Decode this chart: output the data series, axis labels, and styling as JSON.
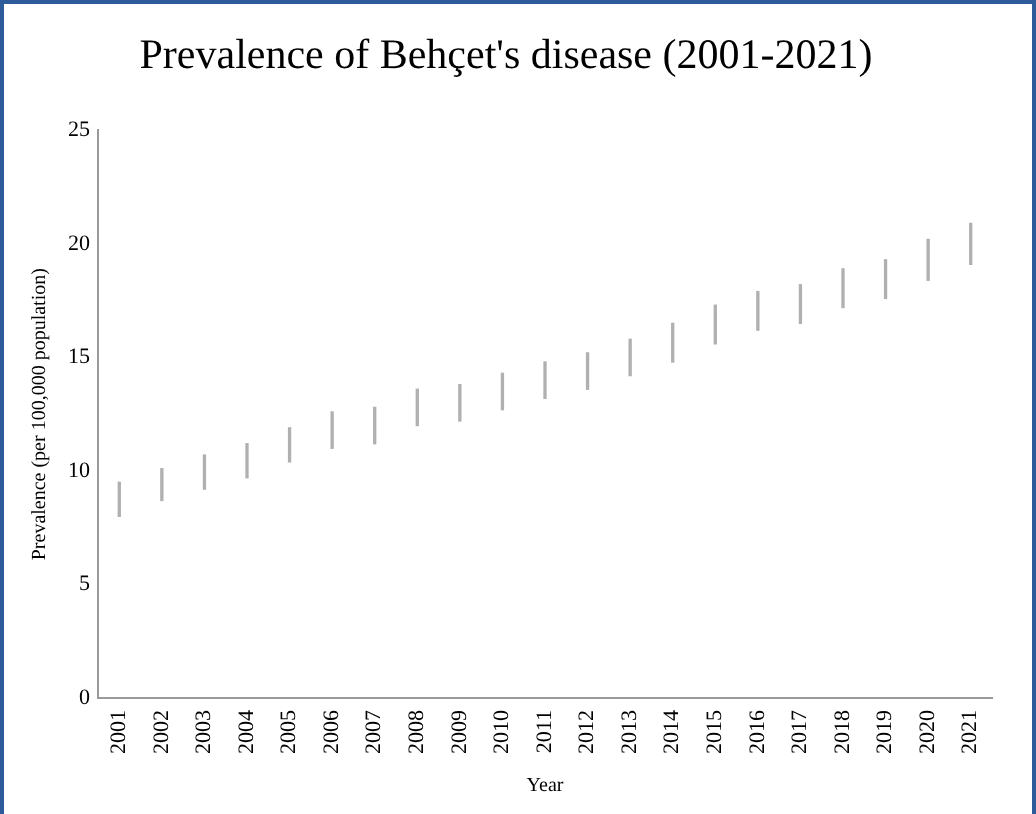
{
  "chart_data": {
    "type": "bar",
    "title": "Prevalence of Behçet's disease (2001-2021)",
    "xlabel": "Year",
    "ylabel": "Prevalence (per 100,000 population)",
    "categories": [
      "2001",
      "2002",
      "2003",
      "2004",
      "2005",
      "2006",
      "2007",
      "2008",
      "2009",
      "2010",
      "2011",
      "2012",
      "2013",
      "2014",
      "2015",
      "2016",
      "2017",
      "2018",
      "2019",
      "2020",
      "2021"
    ],
    "base": [
      8.0,
      8.7,
      9.2,
      9.7,
      10.4,
      11.0,
      11.2,
      12.0,
      12.2,
      12.7,
      13.2,
      13.6,
      14.2,
      14.8,
      15.6,
      16.2,
      16.5,
      17.2,
      17.6,
      18.4,
      19.1
    ],
    "values": [
      1.5,
      1.4,
      1.5,
      1.5,
      1.5,
      1.6,
      1.6,
      1.6,
      1.6,
      1.6,
      1.6,
      1.6,
      1.6,
      1.7,
      1.7,
      1.7,
      1.7,
      1.7,
      1.7,
      1.8,
      1.8
    ],
    "color": "#b0b0b0",
    "ylim": [
      0,
      25
    ],
    "yticks": [
      0,
      5,
      10,
      15,
      20,
      25
    ],
    "grid": false,
    "legend": false
  }
}
